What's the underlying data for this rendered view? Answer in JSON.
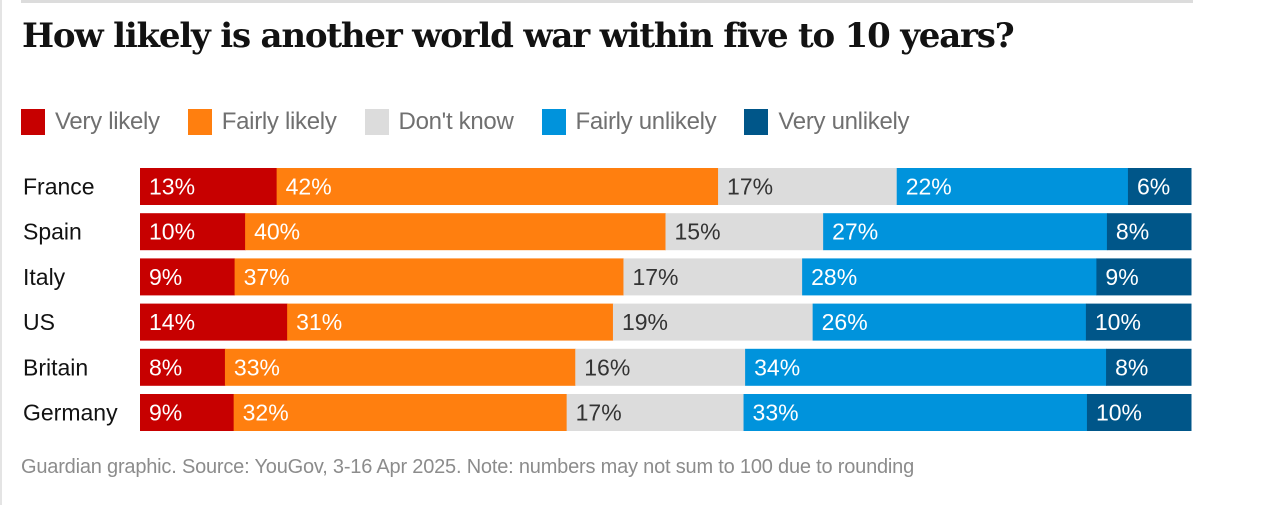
{
  "chart_data": {
    "type": "bar",
    "orientation": "horizontal",
    "stacked": true,
    "title": "How likely is another world war within five to 10 years?",
    "categories": [
      "France",
      "Spain",
      "Italy",
      "US",
      "Britain",
      "Germany"
    ],
    "series": [
      {
        "name": "Very likely",
        "color": "#c70000",
        "label_color": "#ffffff",
        "values": [
          13,
          10,
          9,
          14,
          8,
          9
        ]
      },
      {
        "name": "Fairly likely",
        "color": "#ff7f0f",
        "label_color": "#ffffff",
        "values": [
          42,
          40,
          37,
          31,
          33,
          32
        ]
      },
      {
        "name": "Don't know",
        "color": "#dcdcdc",
        "label_color": "#333333",
        "values": [
          17,
          15,
          17,
          19,
          16,
          17
        ]
      },
      {
        "name": "Fairly unlikely",
        "color": "#0093dc",
        "label_color": "#ffffff",
        "values": [
          22,
          27,
          28,
          26,
          34,
          33
        ]
      },
      {
        "name": "Very unlikely",
        "color": "#005689",
        "label_color": "#ffffff",
        "values": [
          6,
          8,
          9,
          10,
          8,
          10
        ]
      }
    ],
    "value_suffix": "%",
    "legend_position": "top-left",
    "grid": false,
    "xlabel": "",
    "ylabel": "",
    "note": "Guardian graphic. Source: YouGov, 3-16 Apr 2025. Note: numbers may not sum to 100 due to rounding"
  },
  "header": {
    "title": "How likely is another world war within five to 10 years?"
  },
  "legend": {
    "items": [
      {
        "label": "Very likely",
        "color": "#c70000"
      },
      {
        "label": "Fairly likely",
        "color": "#ff7f0f"
      },
      {
        "label": "Don't know",
        "color": "#dcdcdc"
      },
      {
        "label": "Fairly unlikely",
        "color": "#0093dc"
      },
      {
        "label": "Very unlikely",
        "color": "#005689"
      }
    ]
  },
  "footer": {
    "source": "Guardian graphic. Source: YouGov, 3-16 Apr 2025. Note: numbers may not sum to 100 due to rounding"
  }
}
